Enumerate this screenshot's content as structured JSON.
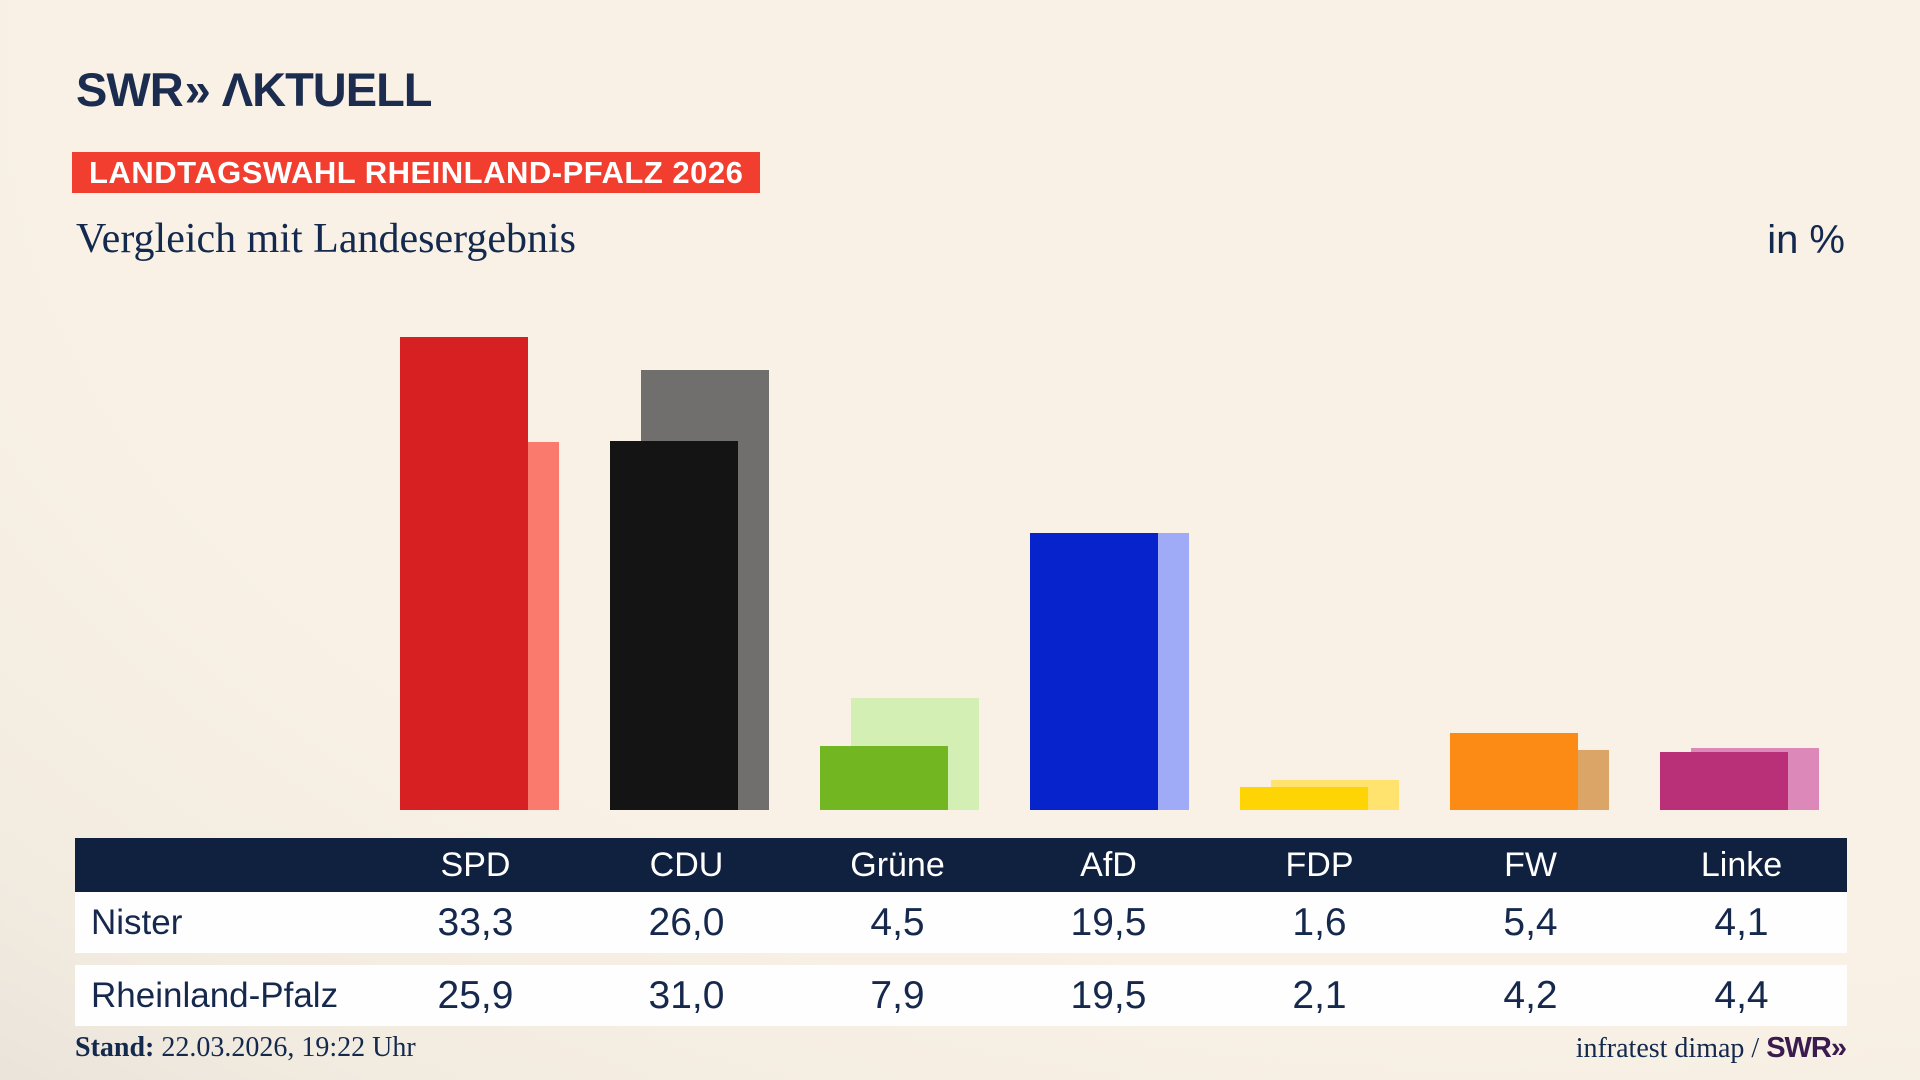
{
  "logo": {
    "swr": "SWR",
    "chevrons": "»",
    "aktuell": "ΛKTUELL"
  },
  "badge": {
    "label": "LANDTAGSWAHL RHEINLAND-PFALZ 2026"
  },
  "header": {
    "title": "Vergleich mit Landesergebnis",
    "unit": "in %"
  },
  "chart_data": {
    "type": "bar",
    "title": "Vergleich mit Landesergebnis",
    "unit": "in %",
    "categories": [
      "SPD",
      "CDU",
      "Grüne",
      "AfD",
      "FDP",
      "FW",
      "Linke"
    ],
    "series": [
      {
        "name": "Nister",
        "values": [
          33.3,
          26.0,
          4.5,
          19.5,
          1.6,
          5.4,
          4.1
        ],
        "colors": [
          "#d62021",
          "#141414",
          "#72b622",
          "#0723cb",
          "#fed405",
          "#fb8b14",
          "#b93078"
        ]
      },
      {
        "name": "Rheinland-Pfalz",
        "values": [
          25.9,
          31.0,
          7.9,
          19.5,
          2.1,
          4.2,
          4.4
        ],
        "colors": [
          "#fb7a6e",
          "#706f6e",
          "#d3efb4",
          "#9fabf7",
          "#ffe36e",
          "#dba567",
          "#dc88b8"
        ]
      }
    ],
    "ylim": [
      0,
      35
    ],
    "grid": false,
    "legend": "none (series identified via table rows)"
  },
  "table": {
    "columns": [
      "SPD",
      "CDU",
      "Grüne",
      "AfD",
      "FDP",
      "FW",
      "Linke"
    ],
    "rows": [
      {
        "label": "Nister",
        "values": [
          "33,3",
          "26,0",
          "4,5",
          "19,5",
          "1,6",
          "5,4",
          "4,1"
        ]
      },
      {
        "label": "Rheinland-Pfalz",
        "values": [
          "25,9",
          "31,0",
          "7,9",
          "19,5",
          "2,1",
          "4,2",
          "4,4"
        ]
      }
    ]
  },
  "footer": {
    "stand_label": "Stand:",
    "stand_value": " 22.03.2026, 19:22 Uhr",
    "source_text": "infratest dimap / ",
    "source_brand": "SWR»"
  },
  "colors": {
    "badge_bg": "#f23e2e",
    "navy_text": "#16294d",
    "table_header_bg": "#102140",
    "brand_purple": "#3a1a4f",
    "background_cream": "#f8f0e4",
    "background_gray": "#c8c6c3"
  }
}
